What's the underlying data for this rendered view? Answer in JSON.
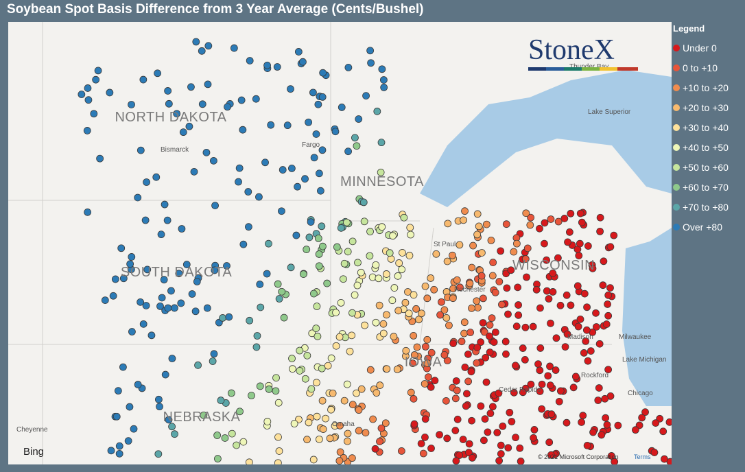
{
  "title": "Soybean Spot Basis Difference from 3 Year Average (Cents/Bushel)",
  "legend": {
    "title": "Legend",
    "items": [
      {
        "label": "Under 0",
        "color": "#d7191c"
      },
      {
        "label": "0 to +10",
        "color": "#e8553a"
      },
      {
        "label": "+10 to +20",
        "color": "#f08c4e"
      },
      {
        "label": "+20 to +30",
        "color": "#f7b96e"
      },
      {
        "label": "+30 to +40",
        "color": "#fde19b"
      },
      {
        "label": "+40 to +50",
        "color": "#eef6b8"
      },
      {
        "label": "+50 to +60",
        "color": "#c6e59d"
      },
      {
        "label": "+60 to +70",
        "color": "#8fc98b"
      },
      {
        "label": "+70 to +80",
        "color": "#5ba6a8"
      },
      {
        "label": "Over +80",
        "color": "#2c7bb6"
      }
    ]
  },
  "map": {
    "states": [
      "NORTH DAKOTA",
      "MINNESOTA",
      "SOUTH DAKOTA",
      "WISCONSIN",
      "NEBRASKA",
      "IOWA"
    ],
    "places": [
      "Bismarck",
      "Fargo",
      "St Paul",
      "Thunder Bay",
      "Lake Superior",
      "Madison",
      "Milwaukee",
      "Lake Michigan",
      "Rockford",
      "Chicago",
      "Cedar Rapids",
      "Omaha",
      "Cheyenne",
      "Rochester"
    ],
    "logo": "StoneX",
    "bing": "Bing",
    "copyright": "© 2021 Microsoft Corporation",
    "terms": "Terms"
  }
}
